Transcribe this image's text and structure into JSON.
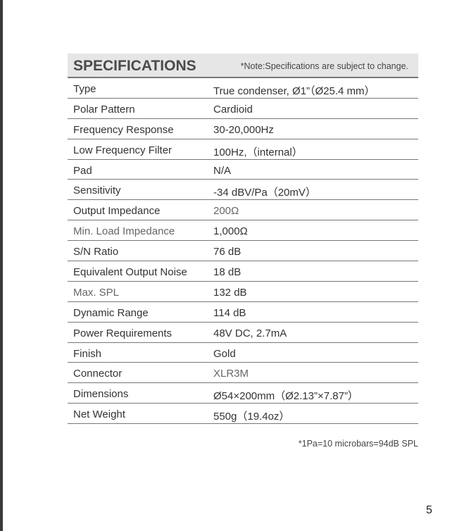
{
  "header": {
    "title": "SPECIFICATIONS",
    "note": "*Note:Specifications are subject to change."
  },
  "specs": [
    {
      "label": "Type",
      "value": "True condenser, Ø1”（Ø25.4 mm）"
    },
    {
      "label": "Polar Pattern",
      "value": "Cardioid"
    },
    {
      "label": "Frequency Response",
      "value": "30-20,000Hz"
    },
    {
      "label": "Low Frequency Filter",
      "value": "100Hz,（internal）"
    },
    {
      "label": "Pad",
      "value": "N/A"
    },
    {
      "label": "Sensitivity",
      "value": "-34 dBV/Pa（20mV）"
    },
    {
      "label": "Output Impedance",
      "value": "200Ω"
    },
    {
      "label": "Min. Load Impedance",
      "value": "1,000Ω"
    },
    {
      "label": "S/N Ratio",
      "value": "76 dB"
    },
    {
      "label": "Equivalent Output Noise",
      "value": "18 dB"
    },
    {
      "label": "Max. SPL",
      "value": "132 dB"
    },
    {
      "label": "Dynamic Range",
      "value": "114 dB"
    },
    {
      "label": "Power Requirements",
      "value": "48V DC, 2.7mA"
    },
    {
      "label": "Finish",
      "value": "Gold"
    },
    {
      "label": "Connector",
      "value": "XLR3M"
    },
    {
      "label": "Dimensions",
      "value": "Ø54×200mm（Ø2.13”×7.87”）"
    },
    {
      "label": "Net Weight",
      "value": "550g（19.4oz）"
    }
  ],
  "footnote": "*1Pa=10 microbars=94dB SPL",
  "page_number": "5"
}
